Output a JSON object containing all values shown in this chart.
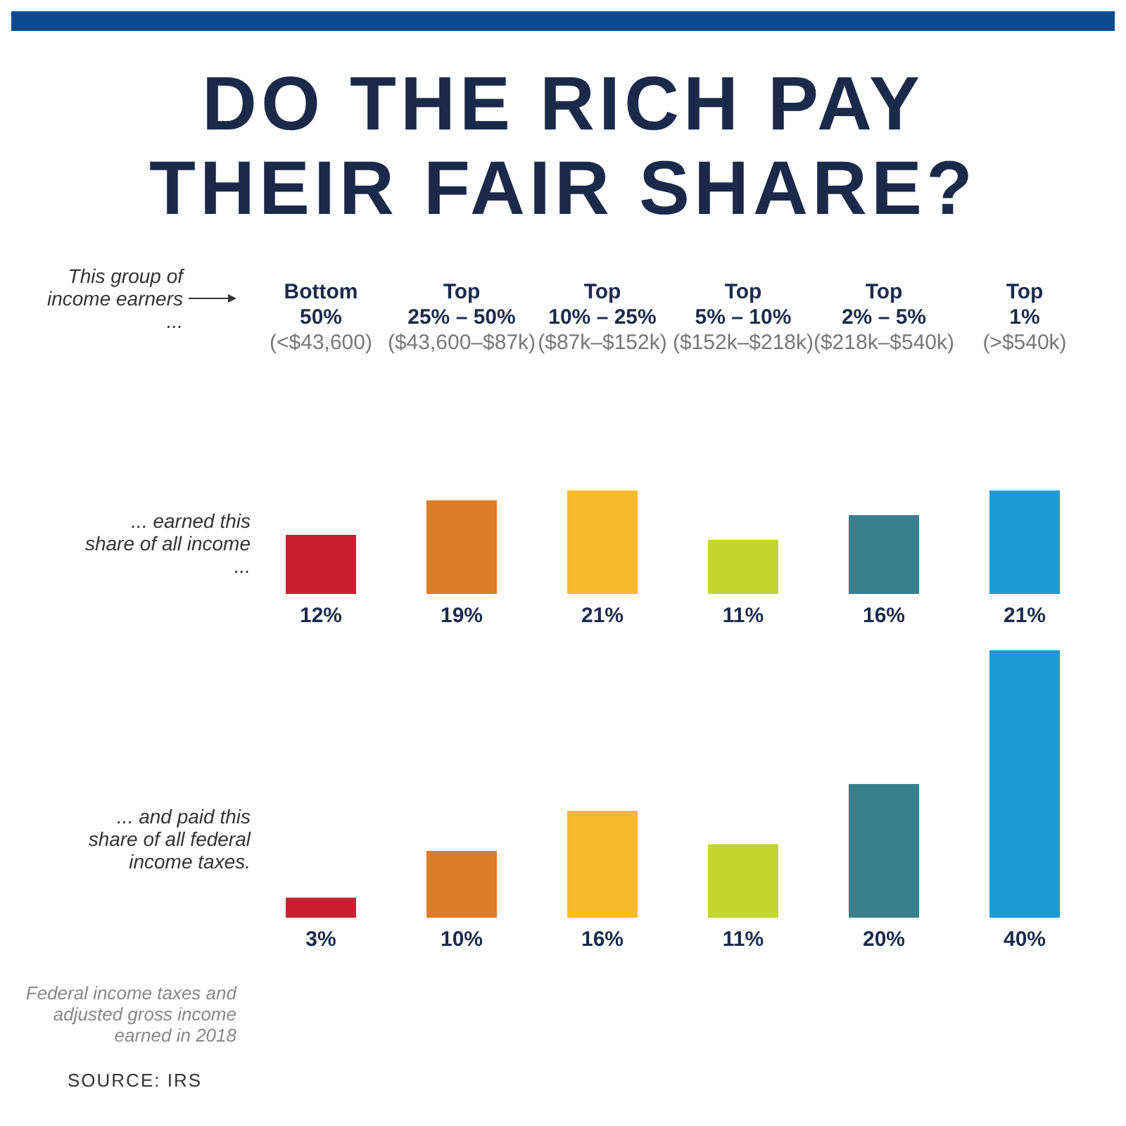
{
  "chart_data": [
    {
      "type": "bar",
      "title": "DO THE RICH PAY THEIR FAIR SHARE?",
      "subtitle": "This group of income earners ...",
      "categories": [
        "Bottom\n50%\n(<$43,600)",
        "Top\n25% – 50%\n($43,600–$87k)",
        "Top\n10% – 25%\n($87k–$152k)",
        "Top\n5% – 10%\n($152k–$218k)",
        "Top\n2% – 5%\n($218k–$540k)",
        "Top\n1%\n(>$540k)"
      ],
      "series": [
        {
          "name": "... earned this share of all income ...",
          "values": [
            12,
            19,
            21,
            11,
            16,
            21
          ],
          "colors": [
            "#c8202f",
            "#e07b27",
            "#f9b928",
            "#c2d72f",
            "#3b7f8c",
            "#1c9ad6"
          ],
          "value_labels": [
            "12%",
            "19%",
            "21%",
            "11%",
            "16%",
            "21%"
          ]
        }
      ],
      "tick_labels": "x",
      "legend": false
    },
    {
      "type": "bar",
      "categories": [
        null,
        null,
        null,
        null,
        null,
        null
      ],
      "series": [
        {
          "name": "... and paid this share of all federal income taxes.",
          "values": [
            3,
            10,
            16,
            11,
            20,
            40
          ],
          "colors": [
            "#c8202f",
            "#e07b27",
            "#f9b928",
            "#c2d72f",
            "#3b7f8c",
            "#1c9ad6"
          ],
          "value_labels": [
            "3%",
            "10%",
            "16%",
            "11%",
            "20%",
            "40%"
          ]
        }
      ],
      "tick_labels": false,
      "legend": false,
      "annotations": [
        "Federal income taxes and adjusted gross income earned in 2018",
        "SOURCE: IRS"
      ]
    }
  ]
}
